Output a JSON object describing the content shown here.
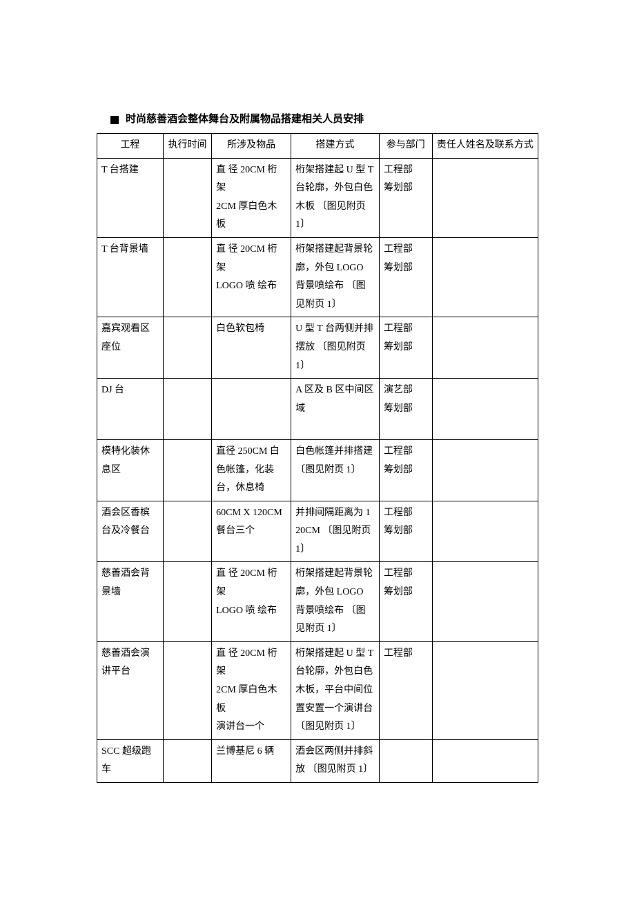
{
  "title": "时尚慈善酒会整体舞台及附属物品搭建相关人员安排",
  "columns": [
    "工程",
    "执行时间",
    "所涉及物品",
    "搭建方式",
    "参与部门",
    "责任人姓名及联系方式"
  ],
  "rows": [
    {
      "project": "T 台搭建",
      "time": "",
      "items": "直 径 20CM 桁架\n2CM 厚白色木板",
      "method": "桁架搭建起 U 型 T 台轮廓，外包白色木板 〔图见附页 1〕",
      "dept": "工程部\n筹划部",
      "contact": ""
    },
    {
      "project": "T 台背景墙",
      "time": "",
      "items": "直 径 20CM 桁架\nLOGO 喷 绘布",
      "method": "桁架搭建起背景轮廓，外包 LOGO 背景喷绘布 〔图见附页 1〕",
      "dept": "工程部\n筹划部",
      "contact": ""
    },
    {
      "project": "嘉宾观看区座位",
      "time": "",
      "items": "白色软包椅",
      "method": "U 型 T 台两侧并排摆放 〔图见附页 1〕",
      "dept": "工程部\n筹划部",
      "contact": ""
    },
    {
      "project": "DJ 台",
      "time": "",
      "items": "",
      "method": "A 区及 B 区中间区域\n ",
      "dept": "演艺部\n筹划部",
      "contact": ""
    },
    {
      "project": "模特化装休息区",
      "time": "",
      "items": "直径 250CM 白色帐篷，化装台，休息椅",
      "method": "白色帐篷并排搭建 〔图见附页 1〕",
      "dept": "工程部\n筹划部",
      "contact": ""
    },
    {
      "project": "酒会区香槟台及冷餐台",
      "time": "",
      "items": "60CM     X 120CM 餐台三个",
      "method": "并排间隔距离为 120CM 〔图见附页 1〕",
      "dept": "工程部\n筹划部",
      "contact": ""
    },
    {
      "project": "慈善酒会背景墙",
      "time": "",
      "items": "直 径 20CM 桁架\nLOGO 喷 绘布",
      "method": "桁架搭建起背景轮廓，外包 LOGO 背景喷绘布 〔图见附页 1〕",
      "dept": "工程部\n筹划部",
      "contact": ""
    },
    {
      "project": "慈善酒会演讲平台",
      "time": "",
      "items": "直 径 20CM 桁架\n2CM 厚白色木板\n演讲台一个",
      "method": "桁架搭建起 U 型 T 台轮廓，外包白色木板，平台中间位置安置一个演讲台 〔图见附页 1〕",
      "dept": "工程部",
      "contact": ""
    },
    {
      "project": "SCC 超级跑车",
      "time": "",
      "items": "兰博基尼 6 辆",
      "method": "酒会区两侧并排斜放 〔图见附页 1〕",
      "dept": "",
      "contact": ""
    }
  ]
}
